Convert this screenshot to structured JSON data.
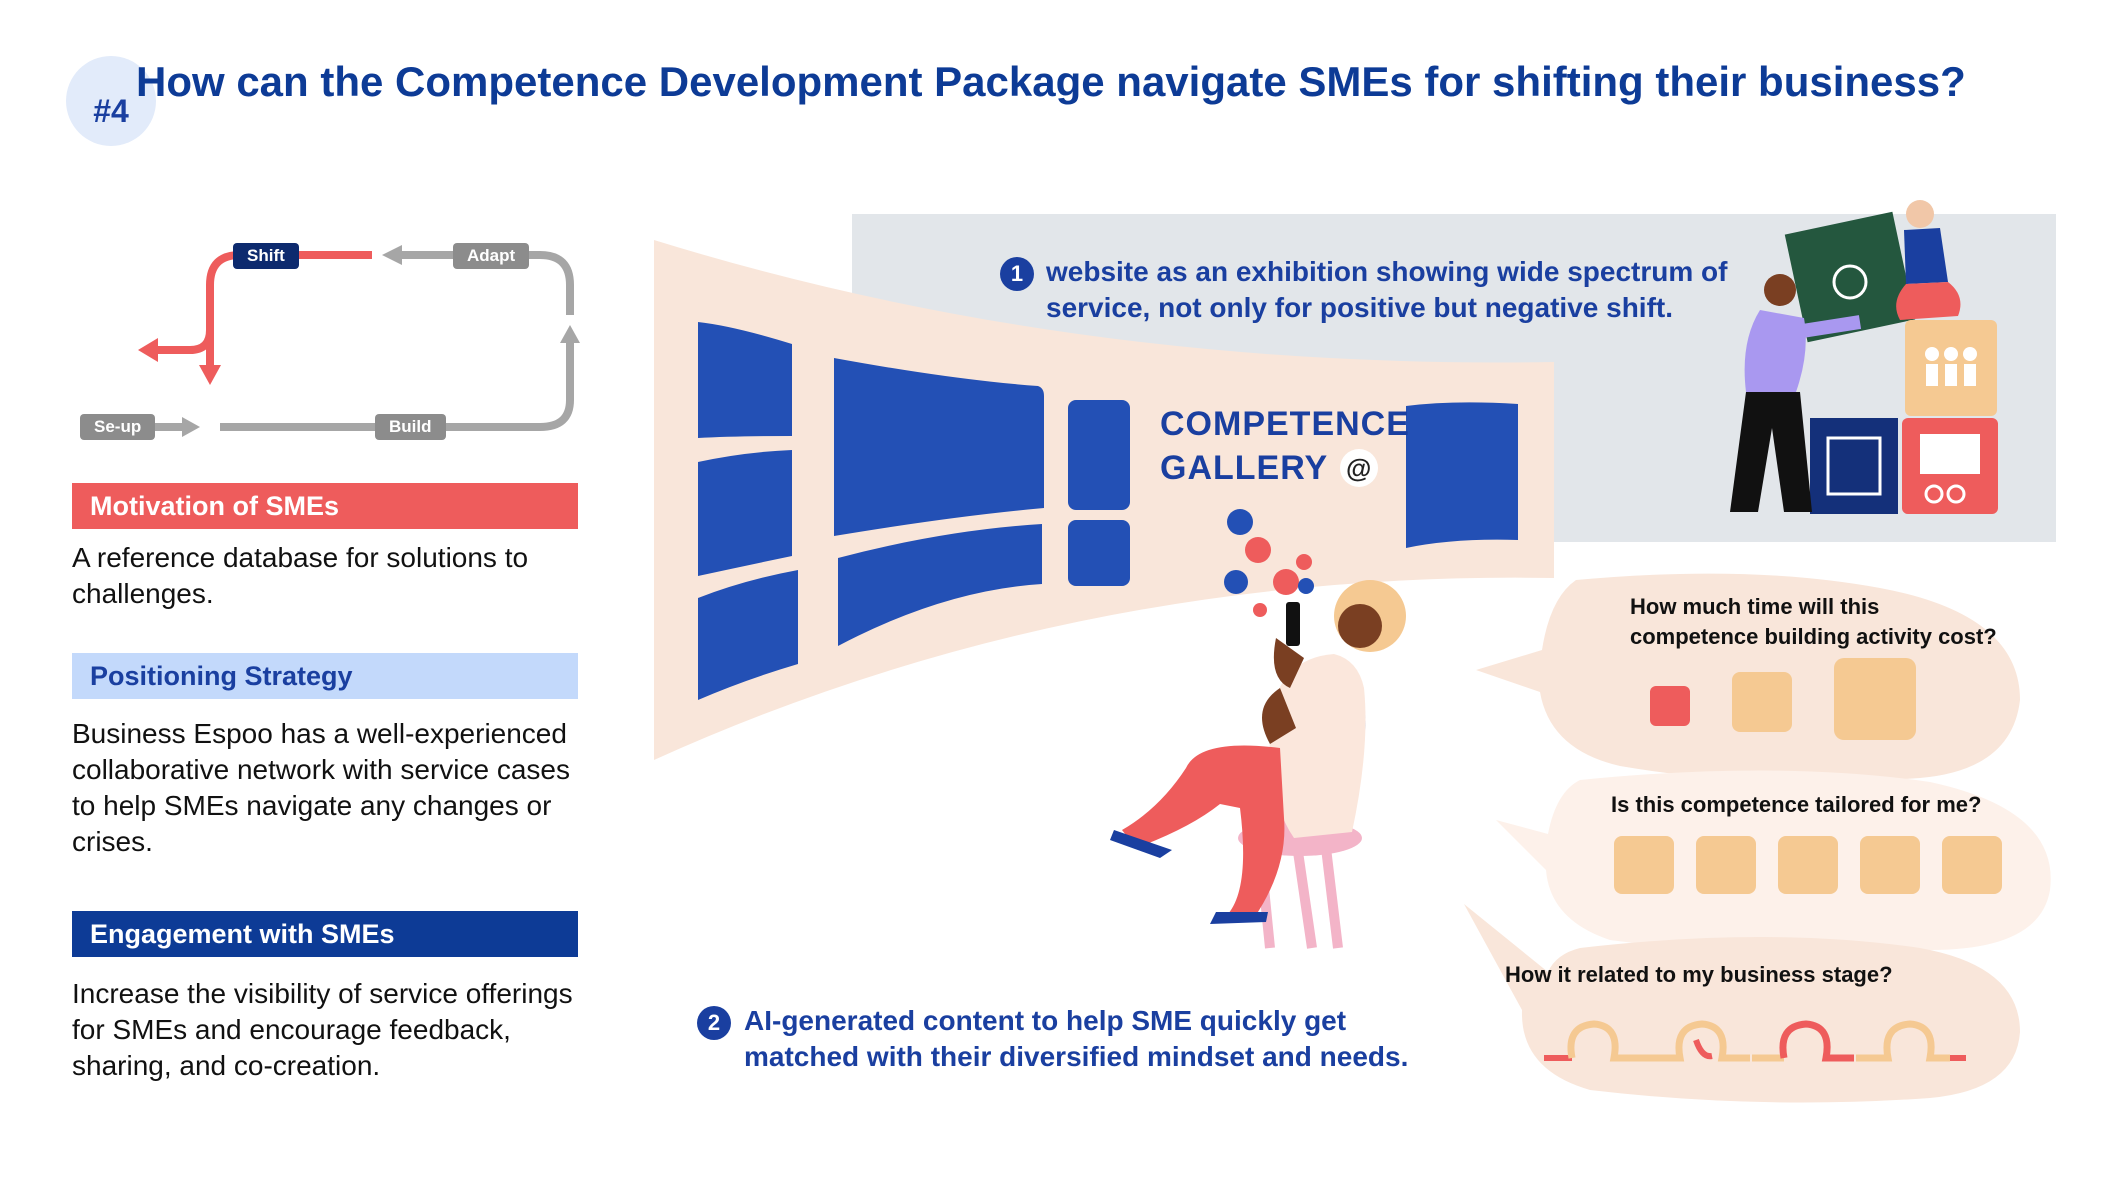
{
  "header": {
    "badge": "#4",
    "title": "How can the Competence Development Package navigate SMEs for shifting their business?"
  },
  "cycle": {
    "labels": {
      "shift": "Shift",
      "adapt": "Adapt",
      "setup": "Se-up",
      "build": "Build"
    }
  },
  "sections": [
    {
      "heading": "Motivation of SMEs",
      "text": "A reference database for solutions to challenges."
    },
    {
      "heading": "Positioning Strategy",
      "text": "Business Espoo has a well-experienced collaborative network with service cases to help SMEs navigate any changes or crises."
    },
    {
      "heading": "Engagement with SMEs",
      "text": "Increase the visibility of service offerings for SMEs and encourage feedback, sharing, and co-creation."
    }
  ],
  "gallery": {
    "line1": "COMPETENCE",
    "line2": "GALLERY",
    "logo_icon": "spiral-logo-icon"
  },
  "notes": [
    {
      "num": "1",
      "line1": "website as an exhibition showing wide spectrum of",
      "line2": "service, not only for positive but negative shift."
    },
    {
      "num": "2",
      "line1": "AI-generated content to help SME quickly get",
      "line2": "matched with their diversified mindset and needs."
    }
  ],
  "bubbles": [
    {
      "line1": "How much time will this",
      "line2": "competence building activity cost?"
    },
    {
      "line1": "Is this competence tailored for me?"
    },
    {
      "line1": "How it related to my business stage?"
    }
  ],
  "colors": {
    "navy": "#0d3b96",
    "blue": "#2350b5",
    "red": "#ee5c5c",
    "light_blue": "#c3d9fb",
    "peach": "#f9e6da",
    "tan": "#f5c992",
    "grey_panel": "#e2e6ea"
  }
}
